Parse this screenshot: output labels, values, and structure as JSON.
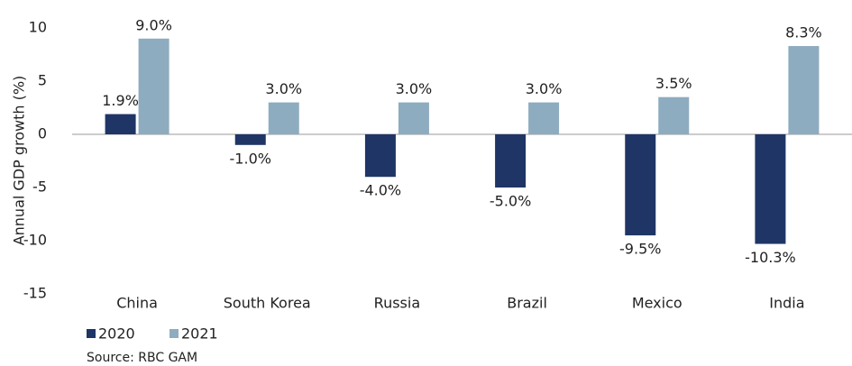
{
  "chart_data": {
    "type": "bar",
    "y_label": "Annual GDP growth (%)",
    "source": "Source: RBC GAM",
    "categories": [
      "China",
      "South Korea",
      "Russia",
      "Brazil",
      "Mexico",
      "India"
    ],
    "series": [
      {
        "name": "2020",
        "color": "#1f3566",
        "values": [
          1.9,
          -1.0,
          -4.0,
          -5.0,
          -9.5,
          -10.3
        ],
        "value_labels": [
          "1.9%",
          "-1.0%",
          "-4.0%",
          "-5.0%",
          "-9.5%",
          "-10.3%"
        ]
      },
      {
        "name": "2021",
        "color": "#8eacbf",
        "values": [
          9.0,
          3.0,
          3.0,
          3.0,
          3.5,
          8.3
        ],
        "value_labels": [
          "9.0%",
          "3.0%",
          "3.0%",
          "3.0%",
          "3.5%",
          "8.3%"
        ]
      }
    ],
    "ylim": [
      -15,
      10
    ],
    "yticks": [
      -15,
      -10,
      -5,
      0,
      5,
      10
    ],
    "grid": false
  }
}
